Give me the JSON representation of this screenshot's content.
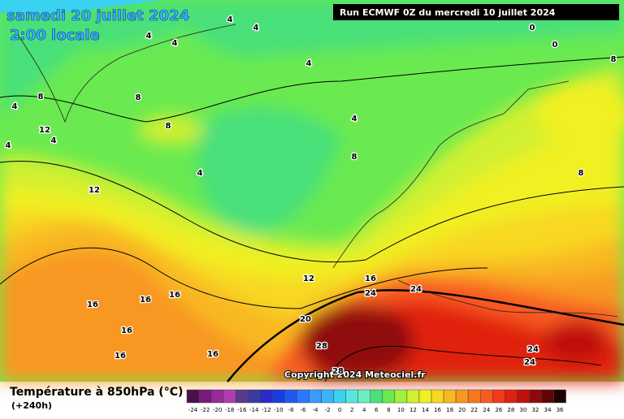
{
  "header": {
    "date": "samedi 20 juillet 2024",
    "time": "2:00 locale",
    "run": "Run ECMWF 0Z du mercredi 10 juillet 2024"
  },
  "copyright": "Copyright 2024 Meteociel.fr",
  "legend": {
    "title": "Température à 850hPa (°C)",
    "lead": "(+240h)",
    "values": [
      -24,
      -22,
      -20,
      -18,
      -16,
      -14,
      -12,
      -10,
      -8,
      -6,
      -4,
      -2,
      0,
      2,
      4,
      6,
      8,
      10,
      12,
      14,
      16,
      18,
      20,
      22,
      24,
      26,
      28,
      30,
      32,
      34,
      36
    ],
    "colors": [
      "#4b0f4b",
      "#7a1a7a",
      "#9b2a9b",
      "#b03cb0",
      "#5a3a8a",
      "#3a3aa0",
      "#2a2ac8",
      "#1a3ce0",
      "#1e5af0",
      "#2a78ff",
      "#3a9aff",
      "#3ab4ff",
      "#3ad2f0",
      "#5ae6e0",
      "#6aeec0",
      "#4ae07a",
      "#6aea50",
      "#a0f040",
      "#d0f030",
      "#f0f020",
      "#f8d820",
      "#f8b820",
      "#f89820",
      "#f87820",
      "#f85a20",
      "#f03a1a",
      "#e02010",
      "#c01010",
      "#900808",
      "#600404",
      "#200000"
    ]
  },
  "contour_labels": [
    4,
    4,
    4,
    4,
    4,
    4,
    4,
    4,
    4,
    4,
    8,
    8,
    8,
    8,
    8,
    8,
    12,
    12,
    12,
    16,
    16,
    16,
    16,
    16,
    16,
    16,
    20,
    24,
    24,
    24,
    24,
    28,
    28,
    0,
    0
  ]
}
